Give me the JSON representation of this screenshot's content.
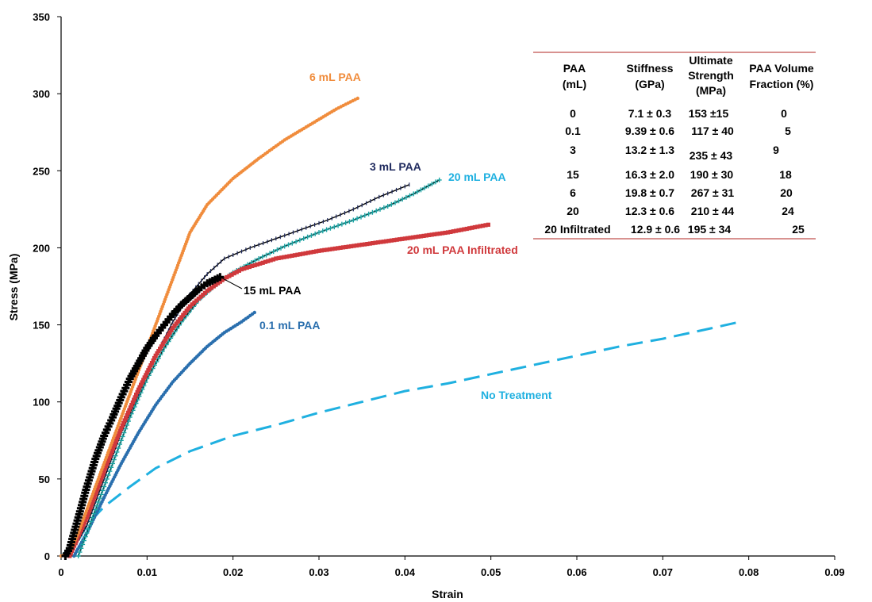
{
  "chart_data": {
    "type": "line",
    "xlabel": "Strain",
    "ylabel": "Stress (MPa)",
    "xlim": [
      0,
      0.09
    ],
    "ylim": [
      0,
      350
    ],
    "xticks": [
      "0",
      "0.01",
      "0.02",
      "0.03",
      "0.04",
      "0.05",
      "0.06",
      "0.07",
      "0.08",
      "0.09"
    ],
    "yticks": [
      "0",
      "50",
      "100",
      "150",
      "200",
      "250",
      "300",
      "350"
    ],
    "grid": false,
    "series": [
      {
        "name": "6 mL PAA",
        "color": "#f08c3c",
        "style": "dotted-markers",
        "x": [
          0,
          0.001,
          0.002,
          0.004,
          0.006,
          0.008,
          0.01,
          0.012,
          0.014,
          0.015,
          0.017,
          0.02,
          0.023,
          0.026,
          0.029,
          0.032,
          0.0345
        ],
        "y": [
          0,
          2,
          15,
          45,
          75,
          105,
          135,
          165,
          195,
          210,
          228,
          245,
          258,
          270,
          280,
          290,
          297
        ]
      },
      {
        "name": "3 mL PAA",
        "color": "#1f2a5e",
        "style": "line-small-markers",
        "x": [
          0.001,
          0.003,
          0.005,
          0.007,
          0.009,
          0.011,
          0.013,
          0.015,
          0.017,
          0.019,
          0.022,
          0.025,
          0.028,
          0.031,
          0.034,
          0.037,
          0.0405
        ],
        "y": [
          0,
          20,
          50,
          80,
          105,
          130,
          152,
          170,
          183,
          193,
          200,
          206,
          212,
          218,
          225,
          233,
          241
        ]
      },
      {
        "name": "20 mL PAA",
        "color": "#1aa3a3",
        "style": "line-star-markers",
        "x": [
          0.002,
          0.004,
          0.006,
          0.008,
          0.01,
          0.012,
          0.014,
          0.016,
          0.018,
          0.02,
          0.023,
          0.026,
          0.03,
          0.034,
          0.038,
          0.041,
          0.044
        ],
        "y": [
          0,
          30,
          60,
          90,
          115,
          135,
          152,
          166,
          176,
          184,
          193,
          201,
          210,
          218,
          227,
          235,
          244
        ]
      },
      {
        "name": "20 mL PAA Infiltrated",
        "color": "#d0393c",
        "style": "square-markers",
        "x": [
          0.001,
          0.003,
          0.005,
          0.007,
          0.009,
          0.011,
          0.013,
          0.015,
          0.017,
          0.019,
          0.021,
          0.025,
          0.03,
          0.035,
          0.04,
          0.045,
          0.0497
        ],
        "y": [
          0,
          25,
          55,
          83,
          108,
          130,
          148,
          162,
          172,
          180,
          186,
          193,
          198,
          202,
          206,
          210,
          215
        ]
      },
      {
        "name": "15 mL PAA",
        "color": "#000000",
        "style": "plus-markers",
        "x": [
          0.0005,
          0.001,
          0.002,
          0.003,
          0.004,
          0.005,
          0.006,
          0.007,
          0.008,
          0.009,
          0.01,
          0.011,
          0.012,
          0.013,
          0.014,
          0.015,
          0.016,
          0.017,
          0.0185
        ],
        "y": [
          0,
          5,
          25,
          45,
          63,
          78,
          90,
          103,
          115,
          125,
          135,
          143,
          150,
          157,
          163,
          168,
          173,
          177,
          181
        ]
      },
      {
        "name": "0.1 mL PAA",
        "color": "#2a6fae",
        "style": "dotted-markers",
        "x": [
          0.0015,
          0.003,
          0.005,
          0.007,
          0.009,
          0.011,
          0.013,
          0.015,
          0.017,
          0.019,
          0.021,
          0.0225
        ],
        "y": [
          0,
          15,
          38,
          60,
          80,
          98,
          113,
          125,
          136,
          145,
          152,
          158
        ]
      },
      {
        "name": "No Treatment",
        "color": "#1fb0e0",
        "style": "dashed",
        "x": [
          0,
          0.002,
          0.003,
          0.005,
          0.008,
          0.011,
          0.015,
          0.02,
          0.025,
          0.03,
          0.035,
          0.04,
          0.045,
          0.05,
          0.055,
          0.06,
          0.065,
          0.07,
          0.075,
          0.079
        ],
        "y": [
          0,
          10,
          20,
          32,
          45,
          57,
          68,
          78,
          85,
          93,
          100,
          107,
          112,
          118,
          124,
          130,
          136,
          141,
          147,
          152
        ]
      }
    ],
    "annotations": [
      {
        "text": "6 mL PAA"
      },
      {
        "text": "3 mL PAA"
      },
      {
        "text": "20 mL PAA"
      },
      {
        "text": "20 mL PAA Infiltrated"
      },
      {
        "text": "15 mL PAA"
      },
      {
        "text": "0.1 mL PAA"
      },
      {
        "text": "No Treatment"
      }
    ],
    "table": {
      "headers": [
        [
          "PAA",
          "(mL)"
        ],
        [
          "Stiffness",
          "(GPa)"
        ],
        [
          "Ultimate",
          "Strength",
          "(MPa)"
        ],
        [
          "PAA Volume",
          "Fraction (%)"
        ]
      ],
      "rows": [
        [
          "0",
          "7.1 ± 0.3",
          "153 ±15",
          "0"
        ],
        [
          "0.1",
          "9.39 ± 0.6",
          "117 ± 40",
          "5"
        ],
        [
          "3",
          "13.2 ± 1.3",
          "235 ± 43",
          "9"
        ],
        [
          "15",
          "16.3 ± 2.0",
          "190 ± 30",
          "18"
        ],
        [
          "6",
          "19.8 ± 0.7",
          "267 ± 31",
          "20"
        ],
        [
          "20",
          "12.3 ± 0.6",
          "210 ± 44",
          "24"
        ],
        [
          "20 Infiltrated",
          "12.9 ± 0.6",
          "195 ± 34",
          "25"
        ]
      ],
      "rule_color": "#c0504d"
    }
  }
}
